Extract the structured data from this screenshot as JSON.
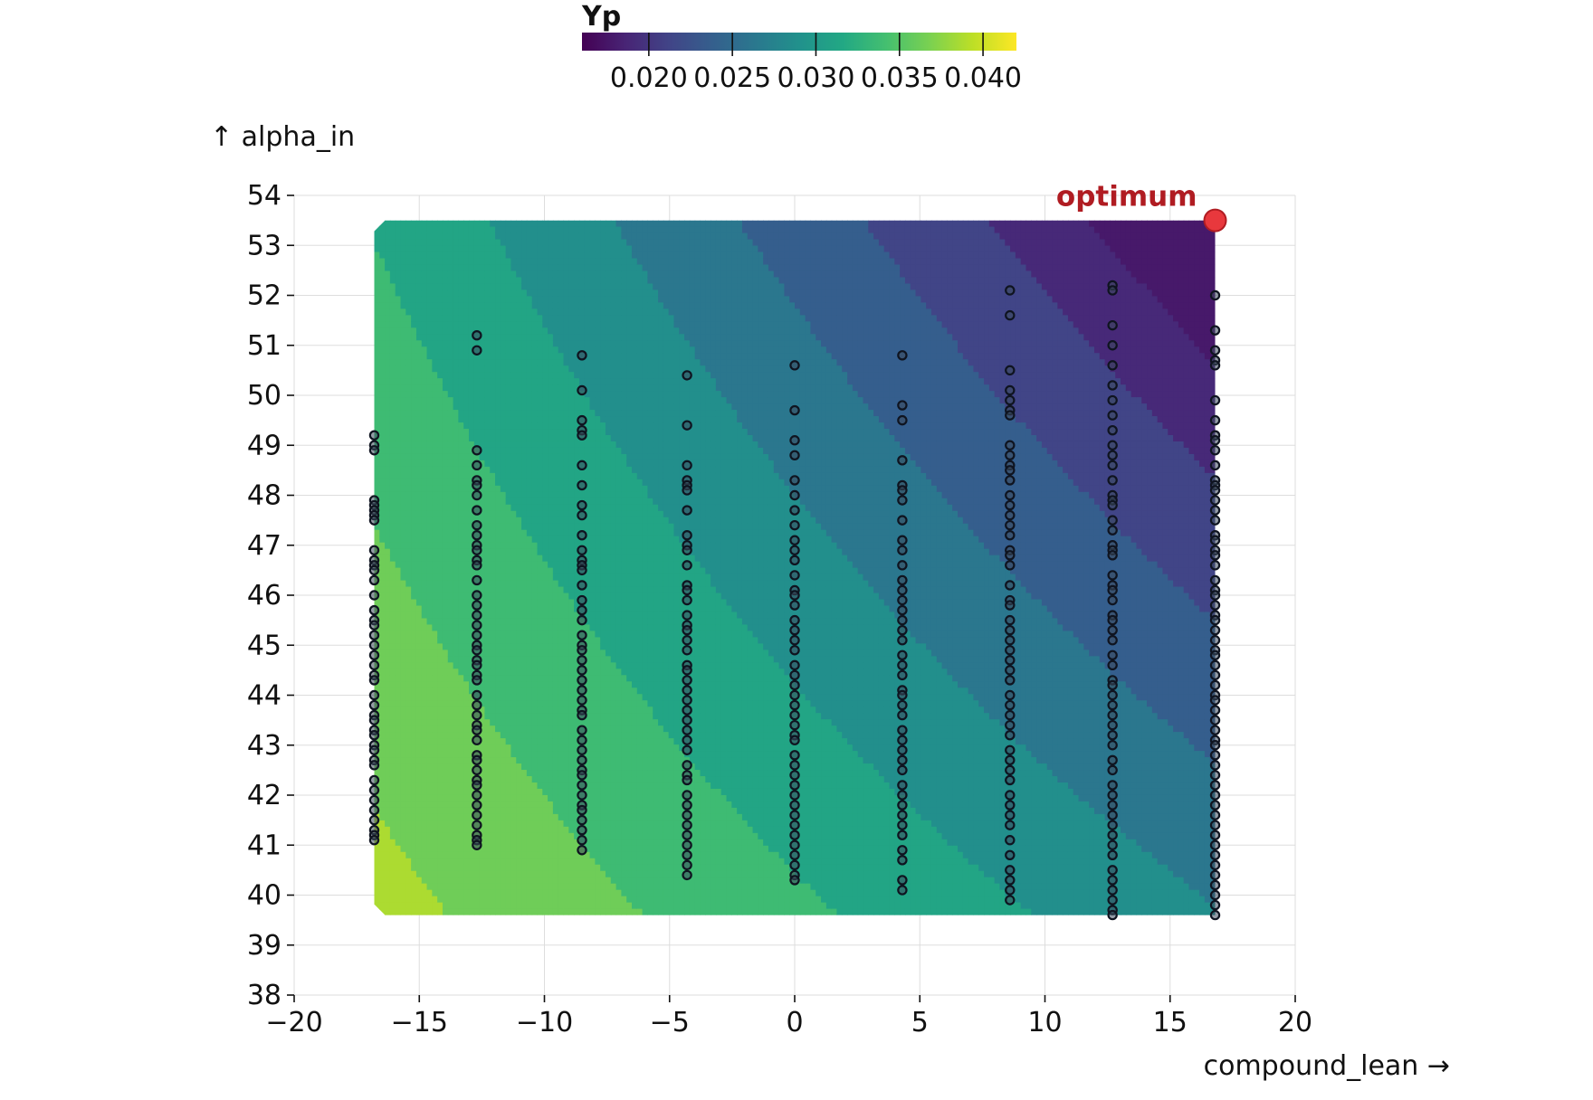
{
  "chart_data": {
    "type": "contour",
    "colorbar": {
      "title": "Yp",
      "ticks": [
        0.02,
        0.025,
        0.03,
        0.035,
        0.04
      ],
      "tick_labels": [
        "0.020",
        "0.025",
        "0.030",
        "0.035",
        "0.040"
      ],
      "range": [
        0.016,
        0.042
      ],
      "colormap": "viridis"
    },
    "xlabel": "compound_lean →",
    "ylabel": "↑ alpha_in",
    "xlim": [
      -20,
      20
    ],
    "ylim": [
      38,
      54
    ],
    "xticks": [
      -20,
      -15,
      -10,
      -5,
      0,
      5,
      10,
      15,
      20
    ],
    "xtick_labels": [
      "−20",
      "−15",
      "−10",
      "−5",
      "0",
      "5",
      "10",
      "15",
      "20"
    ],
    "yticks": [
      38,
      39,
      40,
      41,
      42,
      43,
      44,
      45,
      46,
      47,
      48,
      49,
      50,
      51,
      52,
      53,
      54
    ],
    "ytick_labels": [
      "38",
      "39",
      "40",
      "41",
      "42",
      "43",
      "44",
      "45",
      "46",
      "47",
      "48",
      "49",
      "50",
      "51",
      "52",
      "53",
      "54"
    ],
    "grid": true,
    "contour_domain": {
      "x": [
        -16.8,
        16.8
      ],
      "y": [
        39.6,
        53.5
      ]
    },
    "contour_model": {
      "a0": 0.0285,
      "a_x": -0.00041,
      "a_y": -0.00066,
      "a_xy": -1.3e-05,
      "x0": 0,
      "y0": 46.5
    },
    "contour_levels": [
      0.018,
      0.02,
      0.0225,
      0.025,
      0.0275,
      0.03,
      0.0325,
      0.035,
      0.0375,
      0.04,
      0.0425
    ],
    "samples": {
      "style": {
        "fill": "#3d4a5c",
        "edge": "#0f1420"
      },
      "columns": [
        {
          "x": -16.8,
          "y": [
            49.2,
            49.0,
            48.9,
            47.9,
            47.8,
            47.7,
            47.6,
            47.5,
            46.9,
            46.7,
            46.6,
            46.5,
            46.3,
            46.0,
            45.7,
            45.5,
            45.4,
            45.2,
            45.0,
            44.8,
            44.6,
            44.4,
            44.3,
            44.0,
            43.8,
            43.6,
            43.5,
            43.3,
            43.2,
            43.0,
            42.9,
            42.7,
            42.6,
            42.3,
            42.1,
            41.9,
            41.7,
            41.5,
            41.3,
            41.2,
            41.1
          ]
        },
        {
          "x": -12.7,
          "y": [
            51.2,
            50.9,
            48.9,
            48.6,
            48.3,
            48.2,
            48.0,
            47.7,
            47.4,
            47.2,
            47.0,
            46.9,
            46.7,
            46.6,
            46.3,
            46.0,
            45.8,
            45.6,
            45.4,
            45.2,
            45.0,
            44.9,
            44.7,
            44.6,
            44.4,
            44.3,
            44.0,
            43.8,
            43.6,
            43.4,
            43.3,
            43.1,
            42.8,
            42.7,
            42.5,
            42.3,
            42.2,
            42.0,
            41.8,
            41.6,
            41.4,
            41.2,
            41.1,
            41.0
          ]
        },
        {
          "x": -8.5,
          "y": [
            50.8,
            50.1,
            49.5,
            49.3,
            49.2,
            48.6,
            48.2,
            47.8,
            47.6,
            47.2,
            46.9,
            46.7,
            46.6,
            46.5,
            46.2,
            45.9,
            45.7,
            45.5,
            45.2,
            45.0,
            44.9,
            44.7,
            44.5,
            44.3,
            44.1,
            43.9,
            43.7,
            43.6,
            43.3,
            43.1,
            42.9,
            42.7,
            42.5,
            42.4,
            42.2,
            42.0,
            41.8,
            41.7,
            41.5,
            41.3,
            41.1,
            40.9
          ]
        },
        {
          "x": -4.3,
          "y": [
            50.4,
            49.4,
            48.6,
            48.3,
            48.2,
            48.1,
            47.7,
            47.2,
            47.0,
            46.9,
            46.6,
            46.2,
            46.1,
            45.9,
            45.6,
            45.4,
            45.3,
            45.1,
            44.9,
            44.6,
            44.5,
            44.3,
            44.1,
            43.9,
            43.7,
            43.5,
            43.3,
            43.1,
            42.9,
            42.6,
            42.4,
            42.3,
            42.0,
            41.8,
            41.6,
            41.4,
            41.2,
            41.0,
            40.8,
            40.6,
            40.4
          ]
        },
        {
          "x": 0.0,
          "y": [
            50.6,
            49.7,
            49.1,
            48.8,
            48.3,
            48.0,
            47.7,
            47.4,
            47.1,
            46.9,
            46.7,
            46.4,
            46.1,
            46.0,
            45.8,
            45.5,
            45.3,
            45.1,
            44.9,
            44.6,
            44.4,
            44.2,
            44.0,
            43.8,
            43.6,
            43.4,
            43.2,
            43.1,
            42.8,
            42.6,
            42.4,
            42.2,
            42.0,
            41.8,
            41.6,
            41.4,
            41.2,
            41.0,
            40.8,
            40.6,
            40.4,
            40.3
          ]
        },
        {
          "x": 4.3,
          "y": [
            50.8,
            49.8,
            49.5,
            48.7,
            48.2,
            48.1,
            47.9,
            47.5,
            47.1,
            46.9,
            46.6,
            46.3,
            46.1,
            45.9,
            45.7,
            45.5,
            45.3,
            45.1,
            44.8,
            44.6,
            44.4,
            44.1,
            44.0,
            43.8,
            43.6,
            43.3,
            43.1,
            42.9,
            42.7,
            42.5,
            42.2,
            42.0,
            41.8,
            41.6,
            41.4,
            41.2,
            40.9,
            40.7,
            40.3,
            40.1
          ]
        },
        {
          "x": 8.6,
          "y": [
            52.1,
            51.6,
            50.5,
            50.1,
            49.9,
            49.7,
            49.6,
            49.0,
            48.8,
            48.6,
            48.5,
            48.3,
            48.0,
            47.8,
            47.6,
            47.4,
            47.2,
            46.9,
            46.8,
            46.6,
            46.2,
            45.9,
            45.8,
            45.5,
            45.3,
            45.1,
            44.9,
            44.7,
            44.5,
            44.3,
            44.0,
            43.8,
            43.6,
            43.4,
            43.2,
            42.9,
            42.7,
            42.5,
            42.3,
            42.0,
            41.8,
            41.6,
            41.4,
            41.1,
            40.8,
            40.5,
            40.3,
            40.1,
            39.9
          ]
        },
        {
          "x": 12.7,
          "y": [
            52.2,
            52.1,
            51.4,
            51.0,
            50.6,
            50.2,
            49.9,
            49.6,
            49.3,
            49.0,
            48.8,
            48.6,
            48.3,
            48.0,
            47.9,
            47.8,
            47.5,
            47.3,
            47.0,
            46.9,
            46.8,
            46.4,
            46.2,
            46.1,
            45.9,
            45.6,
            45.5,
            45.3,
            45.1,
            44.8,
            44.6,
            44.3,
            44.2,
            44.0,
            43.8,
            43.6,
            43.4,
            43.2,
            43.0,
            42.7,
            42.5,
            42.2,
            42.0,
            41.8,
            41.6,
            41.4,
            41.2,
            41.0,
            40.8,
            40.5,
            40.3,
            40.1,
            39.9,
            39.7,
            39.6
          ]
        },
        {
          "x": 16.8,
          "y": [
            52.0,
            51.3,
            50.9,
            50.7,
            50.6,
            49.9,
            49.5,
            49.2,
            49.1,
            48.9,
            48.6,
            48.3,
            48.2,
            48.1,
            47.9,
            47.7,
            47.5,
            47.2,
            47.1,
            46.9,
            46.8,
            46.6,
            46.3,
            46.1,
            46.0,
            45.8,
            45.6,
            45.5,
            45.3,
            45.1,
            44.9,
            44.8,
            44.6,
            44.4,
            44.2,
            44.0,
            43.9,
            43.7,
            43.5,
            43.3,
            43.1,
            43.0,
            42.8,
            42.6,
            42.4,
            42.2,
            42.0,
            41.8,
            41.6,
            41.4,
            41.2,
            41.0,
            40.8,
            40.6,
            40.4,
            40.2,
            40.0,
            39.8,
            39.6
          ]
        }
      ]
    },
    "optimum": {
      "x": 16.8,
      "y": 53.5,
      "label": "optimum",
      "color": "#e8383d",
      "label_color": "#b01c22"
    }
  }
}
